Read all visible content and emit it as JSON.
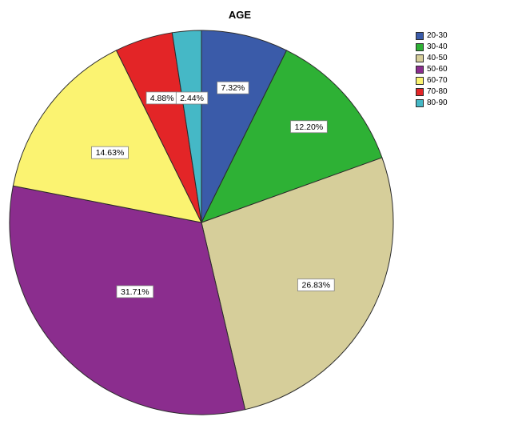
{
  "title": "AGE",
  "chart_data": {
    "type": "pie",
    "title": "AGE",
    "categories": [
      "20-30",
      "30-40",
      "40-50",
      "50-60",
      "60-70",
      "70-80",
      "80-90"
    ],
    "values": [
      7.32,
      12.2,
      26.83,
      31.71,
      14.63,
      4.88,
      2.44
    ],
    "labels": [
      "7.32%",
      "12.20%",
      "26.83%",
      "31.71%",
      "14.63%",
      "4.88%",
      "2.44%"
    ],
    "colors": [
      "#3A5BA9",
      "#2EB135",
      "#D6CE9A",
      "#8B2D8E",
      "#FBF371",
      "#E32527",
      "#45B8C6"
    ],
    "slice_border_color": "#2b2b2b",
    "label_box_border_color": "#808080",
    "legend_position": "top-right",
    "start_angle_deg": 0,
    "direction": "clockwise"
  }
}
